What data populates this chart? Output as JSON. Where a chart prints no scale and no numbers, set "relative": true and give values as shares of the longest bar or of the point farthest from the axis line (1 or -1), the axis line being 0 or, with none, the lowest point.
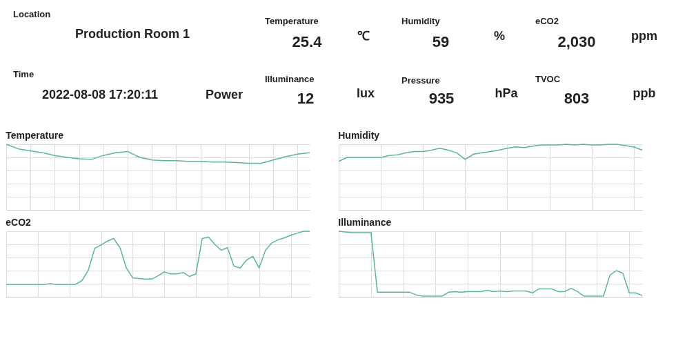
{
  "chart_data": [
    {
      "type": "other",
      "annotations": [
        "Location",
        "Production Room 1",
        "Temperature",
        "25.4",
        "℃",
        "Humidity",
        "59",
        "%",
        "eCO2",
        "2,030",
        "ppm",
        "Time",
        "2022-08-08 17:20:11",
        "Power",
        "Illuminance",
        "12",
        "lux",
        "Pressure",
        "935",
        "hPa",
        "TVOC",
        "803",
        "ppb"
      ]
    },
    {
      "type": "line",
      "title": "Temperature",
      "relative": true,
      "grid": true,
      "tick_labels": false,
      "categories": [
        null,
        null,
        null,
        null,
        null,
        null,
        null,
        null,
        null,
        null,
        null,
        null,
        null,
        null,
        null,
        null,
        null,
        null,
        null,
        null,
        null,
        null,
        null,
        null,
        null,
        null
      ],
      "series": [
        {
          "color": "#5cb88a",
          "values": [
            1.0,
            0.93,
            0.9,
            0.87,
            0.83,
            0.8,
            0.78,
            0.77,
            0.83,
            0.87,
            0.89,
            0.8,
            0.76,
            0.75,
            0.75,
            0.74,
            0.74,
            0.73,
            0.73,
            0.72,
            0.71,
            0.71,
            0.76,
            0.81,
            0.85,
            0.87
          ]
        }
      ]
    },
    {
      "type": "line",
      "title": "Humidity",
      "relative": true,
      "grid": true,
      "tick_labels": false,
      "categories": [
        null,
        null,
        null,
        null,
        null,
        null,
        null,
        null,
        null,
        null,
        null,
        null,
        null,
        null,
        null,
        null,
        null,
        null,
        null,
        null,
        null,
        null,
        null,
        null,
        null,
        null,
        null,
        null,
        null,
        null,
        null,
        null,
        null,
        null,
        null,
        null,
        null
      ],
      "series": [
        {
          "color": "#5cb88a",
          "values": [
            0.74,
            0.8,
            0.8,
            0.8,
            0.8,
            0.8,
            0.83,
            0.84,
            0.87,
            0.89,
            0.89,
            0.91,
            0.94,
            0.91,
            0.87,
            0.77,
            0.85,
            0.87,
            0.89,
            0.91,
            0.94,
            0.96,
            0.95,
            0.97,
            0.99,
            0.99,
            0.99,
            1.0,
            0.99,
            1.0,
            0.99,
            0.99,
            1.0,
            1.0,
            0.98,
            0.96,
            0.91
          ]
        }
      ]
    },
    {
      "type": "line",
      "title": "eCO2",
      "relative": true,
      "grid": true,
      "tick_labels": false,
      "categories": [
        null,
        null,
        null,
        null,
        null,
        null,
        null,
        null,
        null,
        null,
        null,
        null,
        null,
        null,
        null,
        null,
        null,
        null,
        null,
        null,
        null,
        null,
        null,
        null,
        null,
        null,
        null,
        null,
        null,
        null,
        null,
        null,
        null,
        null,
        null,
        null,
        null,
        null,
        null,
        null,
        null,
        null,
        null,
        null,
        null,
        null,
        null,
        null,
        null
      ],
      "series": [
        {
          "color": "#5cb88a",
          "values": [
            0.19,
            0.19,
            0.19,
            0.19,
            0.19,
            0.19,
            0.19,
            0.2,
            0.19,
            0.19,
            0.19,
            0.19,
            0.25,
            0.41,
            0.74,
            0.79,
            0.85,
            0.89,
            0.75,
            0.44,
            0.29,
            0.28,
            0.27,
            0.27,
            0.32,
            0.38,
            0.35,
            0.35,
            0.37,
            0.31,
            0.35,
            0.89,
            0.91,
            0.8,
            0.71,
            0.75,
            0.47,
            0.44,
            0.56,
            0.62,
            0.44,
            0.71,
            0.82,
            0.87,
            0.9,
            0.94,
            0.97,
            1.0,
            1.0
          ]
        }
      ]
    },
    {
      "type": "line",
      "title": "Illuminance",
      "relative": true,
      "grid": true,
      "tick_labels": false,
      "categories": [
        null,
        null,
        null,
        null,
        null,
        null,
        null,
        null,
        null,
        null,
        null,
        null,
        null,
        null,
        null,
        null,
        null,
        null,
        null,
        null,
        null,
        null,
        null,
        null,
        null,
        null,
        null,
        null,
        null,
        null,
        null,
        null,
        null,
        null,
        null,
        null,
        null,
        null,
        null,
        null,
        null,
        null,
        null,
        null,
        null,
        null,
        null,
        null
      ],
      "series": [
        {
          "color": "#5cb88a",
          "values": [
            1.0,
            0.99,
            0.98,
            0.98,
            0.98,
            0.98,
            0.07,
            0.07,
            0.07,
            0.07,
            0.07,
            0.07,
            0.03,
            0.01,
            0.01,
            0.01,
            0.01,
            0.07,
            0.08,
            0.07,
            0.08,
            0.08,
            0.08,
            0.1,
            0.08,
            0.09,
            0.08,
            0.09,
            0.09,
            0.09,
            0.06,
            0.12,
            0.12,
            0.12,
            0.08,
            0.08,
            0.13,
            0.08,
            0.01,
            0.01,
            0.01,
            0.01,
            0.33,
            0.4,
            0.36,
            0.06,
            0.06,
            0.02
          ]
        }
      ]
    }
  ]
}
